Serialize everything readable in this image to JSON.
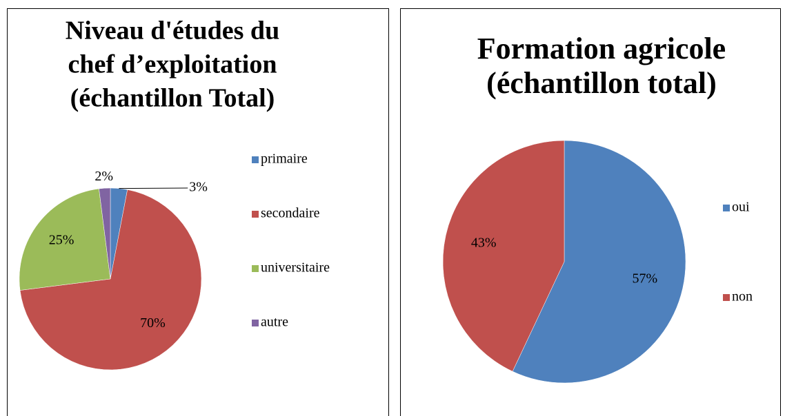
{
  "chart_data": [
    {
      "type": "pie",
      "title": [
        "Niveau d'études du",
        "chef d’exploitation",
        "(échantillon Total)"
      ],
      "categories": [
        "primaire",
        "secondaire",
        "universitaire",
        "autre"
      ],
      "values": [
        3,
        70,
        25,
        2
      ],
      "value_labels": [
        "3%",
        "70%",
        "25%",
        "2%"
      ],
      "colors": [
        "#4f81bd",
        "#c0504d",
        "#9bbb59",
        "#8064a2"
      ],
      "legend": "right"
    },
    {
      "type": "pie",
      "title": [
        "Formation agricole",
        "(échantillon total)"
      ],
      "categories": [
        "oui",
        "non"
      ],
      "values": [
        57,
        43
      ],
      "value_labels": [
        "57%",
        "43%"
      ],
      "colors": [
        "#4f81bd",
        "#c0504d"
      ],
      "legend": "right"
    }
  ]
}
